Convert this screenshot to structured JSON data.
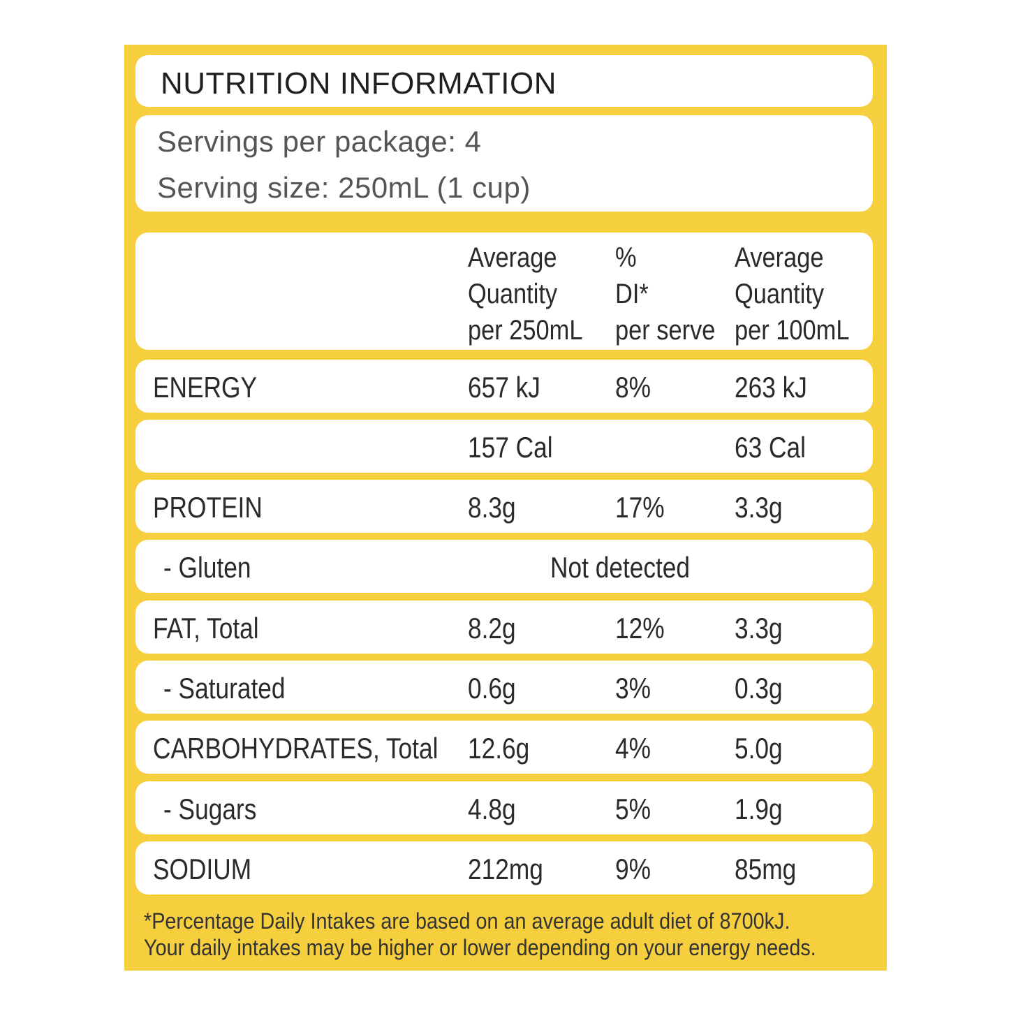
{
  "title": "NUTRITION INFORMATION",
  "servings": {
    "per_package_label": "Servings per package:",
    "per_package_value": "4",
    "size_label": "Serving size:",
    "size_value": "250mL (1 cup)"
  },
  "header": {
    "col_q250": [
      "Average",
      "Quantity",
      "per 250mL"
    ],
    "col_di": [
      "%",
      "DI*",
      "per serve"
    ],
    "col_q100": [
      "Average",
      "Quantity",
      "per 100mL"
    ]
  },
  "rows": [
    {
      "name": "ENERGY",
      "q250": "657 kJ",
      "di": "8%",
      "q100": "263 kJ"
    },
    {
      "name": "",
      "q250": "157 Cal",
      "di": "",
      "q100": "63 Cal"
    },
    {
      "name": "PROTEIN",
      "q250": "8.3g",
      "di": "17%",
      "q100": "3.3g"
    },
    {
      "name": "- Gluten",
      "span": "Not detected"
    },
    {
      "name": "FAT, Total",
      "q250": "8.2g",
      "di": "12%",
      "q100": "3.3g"
    },
    {
      "name": "- Saturated",
      "q250": "0.6g",
      "di": "3%",
      "q100": "0.3g"
    },
    {
      "name": "CARBOHYDRATES, Total",
      "q250": "12.6g",
      "di": "4%",
      "q100": "5.0g"
    },
    {
      "name": "- Sugars",
      "q250": "4.8g",
      "di": "5%",
      "q100": "1.9g"
    },
    {
      "name": "SODIUM",
      "q250": "212mg",
      "di": "9%",
      "q100": "85mg"
    }
  ],
  "footnote": [
    "*Percentage Daily Intakes are based on an average adult diet of 8700kJ.",
    "Your daily intakes may be higher or lower depending on your energy needs."
  ],
  "colors": {
    "panel": "#f6cf3e",
    "box": "#ffffff",
    "text": "#2a2a2a"
  }
}
